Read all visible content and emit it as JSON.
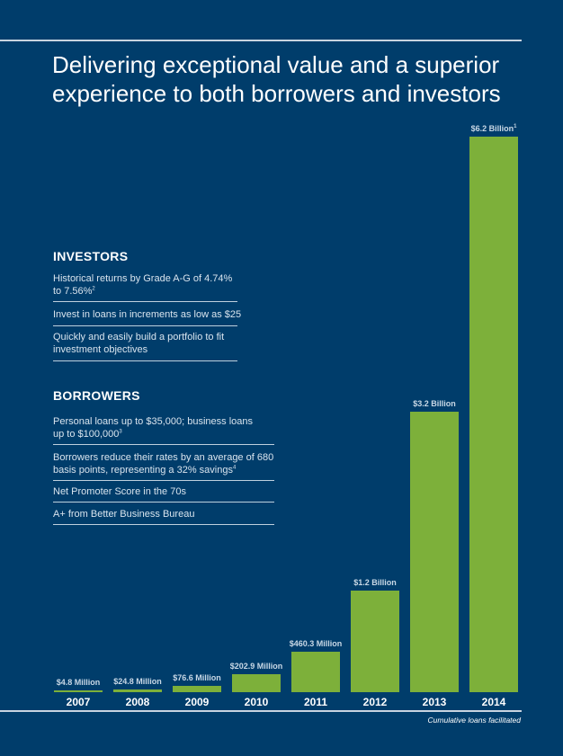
{
  "title": "Delivering exceptional value and a superior experience to both borrowers and investors",
  "investors": {
    "heading": "INVESTORS",
    "items": [
      {
        "text": "Historical returns by Grade A-G of 4.74% to 7.56%",
        "note": "2"
      },
      {
        "text": "Invest in loans in increments as low as $25",
        "note": ""
      },
      {
        "text": "Quickly and easily build a portfolio to fit investment objectives",
        "note": ""
      }
    ]
  },
  "borrowers": {
    "heading": "BORROWERS",
    "items": [
      {
        "text": "Personal loans up to $35,000; business loans up to $100,000",
        "note": "3"
      },
      {
        "text": "Borrowers reduce their rates by an average of 680 basis points, representing a 32% savings",
        "note": "4"
      },
      {
        "text": "Net Promoter Score in the 70s",
        "note": ""
      },
      {
        "text": "A+ from Better Business Bureau",
        "note": ""
      }
    ]
  },
  "caption": "Cumulative loans facilitated",
  "colors": {
    "background": "#003D6B",
    "bar": "#7DB03A",
    "label": "#C9D8E6",
    "rule": "#C8D4E0"
  },
  "chart_data": {
    "type": "bar",
    "categories": [
      "2007",
      "2008",
      "2009",
      "2010",
      "2011",
      "2012",
      "2013",
      "2014"
    ],
    "values": [
      4.8,
      24.8,
      76.6,
      202.9,
      460.3,
      1200,
      3200,
      6200
    ],
    "unit": "Million USD",
    "data_labels": [
      "$4.8 Million",
      "$24.8 Million",
      "$76.6 Million",
      "$202.9 Million",
      "$460.3 Million",
      "$1.2 Billion",
      "$3.2 Billion",
      "$6.2 Billion"
    ],
    "data_label_notes": [
      "",
      "",
      "",
      "",
      "",
      "",
      "",
      "1"
    ],
    "ylim": [
      0,
      6200
    ],
    "grid": false,
    "xlabel": "",
    "ylabel": ""
  }
}
